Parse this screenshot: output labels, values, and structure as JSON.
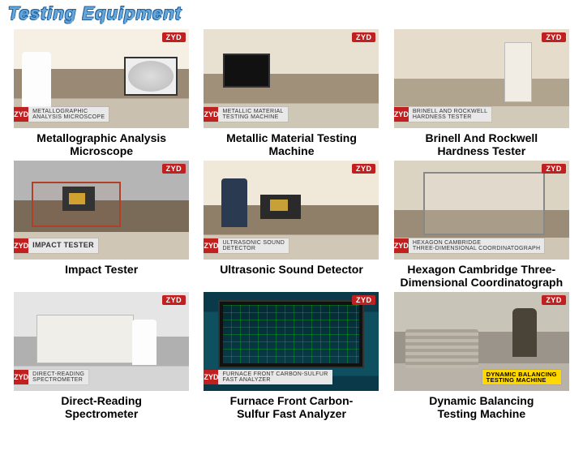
{
  "header": {
    "title": "Testing Equipment"
  },
  "logo": "ZYD",
  "items": [
    {
      "strip_label": "METALLOGRAPHIC\nANALYSIS MICROSCOPE",
      "caption": "Metallographic Analysis\nMicroscope",
      "strip_style": "plain"
    },
    {
      "strip_label": "METALLIC MATERIAL\nTESTING MACHINE",
      "caption": "Metallic Material Testing\nMachine",
      "strip_style": "plain"
    },
    {
      "strip_label": "BRINELL AND ROCKWELL\nHARDNESS TESTER",
      "caption": "Brinell And Rockwell\nHardness Tester",
      "strip_style": "plain"
    },
    {
      "strip_label": "IMPACT TESTER",
      "caption": "Impact Tester",
      "strip_style": "plain"
    },
    {
      "strip_label": "ULTRASONIC SOUND\nDETECTOR",
      "caption": "Ultrasonic Sound Detector",
      "strip_style": "plain"
    },
    {
      "strip_label": "HEXAGON CAMBRIDGE\nTHREE-DIMENSIONAL COORDINATOGRAPH",
      "caption": "Hexagon Cambridge Three-\nDimensional Coordinatograph",
      "strip_style": "plain"
    },
    {
      "strip_label": "DIRECT-READING\nSPECTROMETER",
      "caption": "Direct-Reading\nSpectrometer",
      "strip_style": "plain"
    },
    {
      "strip_label": "FURNACE FRONT CARBON-SULFUR\nFAST ANALYZER",
      "caption": "Furnace Front Carbon-\nSulfur Fast Analyzer",
      "strip_style": "plain"
    },
    {
      "strip_label": "DYNAMIC BALANCING\nTESTING MACHINE",
      "caption": "Dynamic Balancing\nTesting Machine",
      "strip_style": "yellow"
    }
  ]
}
